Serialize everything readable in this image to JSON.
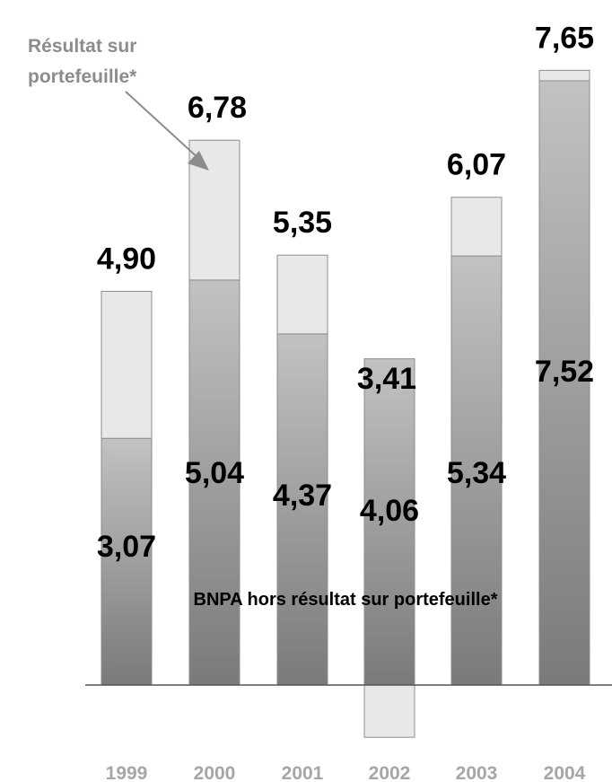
{
  "chart_data": {
    "type": "bar",
    "stacked": true,
    "categories": [
      "1999",
      "2000",
      "2001",
      "2002",
      "2003",
      "2004"
    ],
    "series": [
      {
        "name": "BNPA hors résultat sur portefeuille*",
        "values": [
          3.07,
          5.04,
          4.37,
          4.06,
          5.34,
          7.52
        ]
      },
      {
        "name": "Résultat sur portefeuille*",
        "values": [
          1.83,
          1.74,
          0.98,
          -0.65,
          0.73,
          0.13
        ]
      }
    ],
    "totals": [
      4.9,
      6.78,
      5.35,
      3.41,
      6.07,
      7.65
    ],
    "base_labels": [
      "3,07",
      "5,04",
      "4,37",
      "4,06",
      "5,34",
      "7,52"
    ],
    "total_labels": [
      "4,90",
      "6,78",
      "5,35",
      "3,41",
      "6,07",
      "7,65"
    ],
    "annotation_top": "Résultat sur portefeuille*",
    "annotation_top_lines": [
      "Résultat sur",
      "portefeuille*"
    ],
    "annotation_inner": "BNPA hors résultat sur portefeuille*",
    "colors": {
      "base_gradient_top": "#c2c2c2",
      "base_gradient_bottom": "#7a7a7a",
      "portfolio": "#e8e8e8",
      "bar_outline": "#8c8c8c",
      "axis": "#555555",
      "year_text": "#a6a6a6",
      "annotation_text": "#8c8c8c",
      "value_text": "#000000"
    },
    "grid": false,
    "legend": "none"
  }
}
